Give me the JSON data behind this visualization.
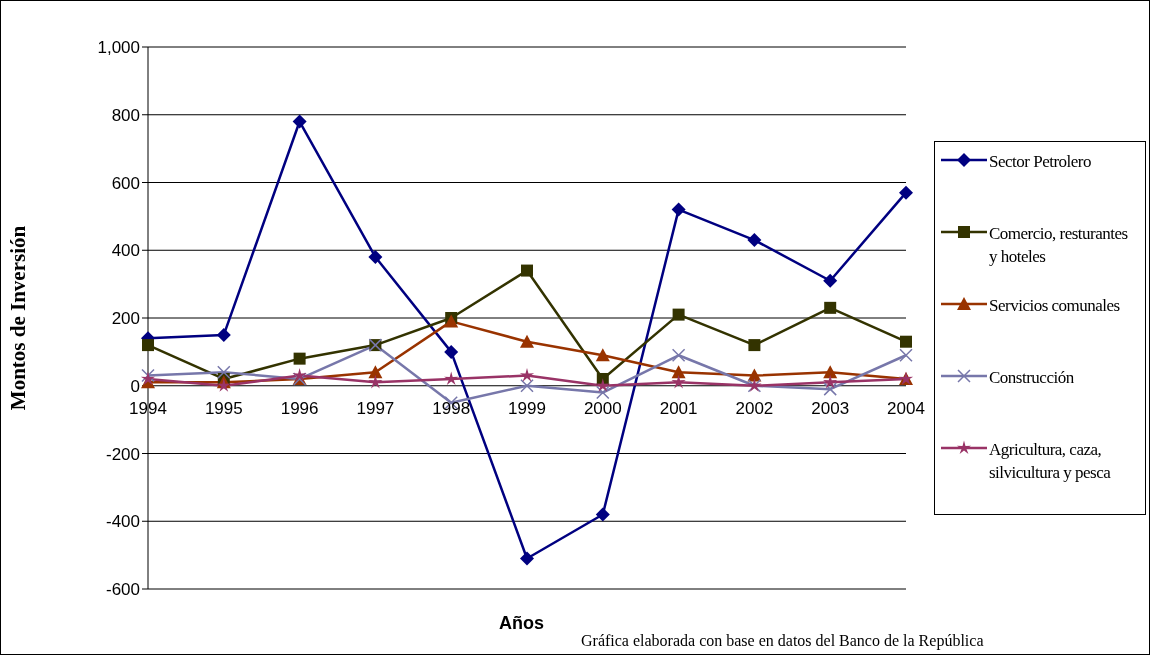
{
  "chart_data": {
    "type": "line",
    "xlabel": "Años",
    "ylabel": "Montos de Inversión",
    "annotations": [
      "Gráfica elaborada con base en datos del Banco de la República"
    ],
    "categories": [
      "1994",
      "1995",
      "1996",
      "1997",
      "1998",
      "1999",
      "2000",
      "2001",
      "2002",
      "2003",
      "2004"
    ],
    "ylim": [
      -600,
      1000
    ],
    "yticks": [
      -600,
      -400,
      -200,
      0,
      200,
      400,
      600,
      800,
      {
        "value": 1000,
        "label": "1,000"
      }
    ],
    "grid": "y",
    "legend": "right",
    "series": [
      {
        "name": "Sector Petrolero",
        "color": "#000080",
        "marker": "diamond",
        "values": [
          140,
          150,
          780,
          380,
          100,
          -510,
          -380,
          520,
          430,
          310,
          570
        ]
      },
      {
        "name": "Comercio, resturantes y hoteles",
        "color": "#333300",
        "marker": "square",
        "values": [
          120,
          20,
          80,
          120,
          200,
          340,
          20,
          210,
          120,
          230,
          130
        ]
      },
      {
        "name": "Servicios comunales",
        "color": "#993300",
        "marker": "triangle",
        "values": [
          10,
          10,
          20,
          40,
          190,
          130,
          90,
          40,
          30,
          40,
          20
        ]
      },
      {
        "name": "Construcción",
        "color": "#7777aa",
        "marker": "cross",
        "values": [
          30,
          40,
          20,
          120,
          -50,
          0,
          -20,
          90,
          0,
          -10,
          90
        ]
      },
      {
        "name": "Agricultura, caza, silvicultura y pesca",
        "color": "#993366",
        "marker": "star",
        "values": [
          20,
          0,
          30,
          10,
          20,
          30,
          0,
          10,
          0,
          10,
          20
        ]
      }
    ]
  }
}
